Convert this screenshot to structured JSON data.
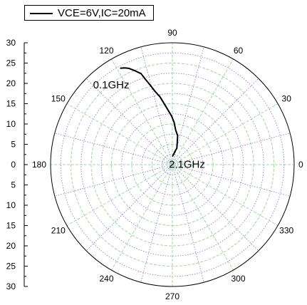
{
  "legend": {
    "label": "VCE=6V,IC=20mA"
  },
  "chart_data": {
    "type": "polar",
    "angle_ticks": [
      "0",
      "30",
      "60",
      "90",
      "120",
      "150",
      "180",
      "210",
      "240",
      "270",
      "300",
      "330"
    ],
    "radial_ticks_left": [
      "30",
      "25",
      "20",
      "15",
      "10",
      "5",
      "0",
      "5",
      "10",
      "15",
      "20",
      "25",
      "30"
    ],
    "radial_range": [
      0,
      30
    ],
    "radial_grid_step": 2.5,
    "angular_grid_step_deg": 15,
    "grid": true,
    "legend_position": "top-left",
    "colors": {
      "trace": "#000000",
      "major_grid": "#a0d8a0",
      "minor_grid": "#7a7acc",
      "axis": "#000000"
    },
    "annotations": [
      {
        "text": "0.1GHz",
        "at_point": 0
      },
      {
        "text": "2.1GHz",
        "at_point": -1
      }
    ],
    "series": [
      {
        "name": "VCE=6V,IC=20mA",
        "points": [
          {
            "angle": 118.5,
            "r": 27.0
          },
          {
            "angle": 116.4,
            "r": 26.6
          },
          {
            "angle": 114.3,
            "r": 26.0
          },
          {
            "angle": 112.0,
            "r": 25.0
          },
          {
            "angle": 109.0,
            "r": 23.7
          },
          {
            "angle": 107.7,
            "r": 22.2
          },
          {
            "angle": 105.8,
            "r": 20.5
          },
          {
            "angle": 103.4,
            "r": 18.6
          },
          {
            "angle": 100.4,
            "r": 17.0
          },
          {
            "angle": 96.9,
            "r": 14.7
          },
          {
            "angle": 91.0,
            "r": 12.0
          },
          {
            "angle": 87.8,
            "r": 10.5
          },
          {
            "angle": 84.4,
            "r": 8.5
          },
          {
            "angle": 79.7,
            "r": 7.3
          },
          {
            "angle": 77.5,
            "r": 5.5
          },
          {
            "angle": 74.7,
            "r": 4.2
          },
          {
            "angle": 78.4,
            "r": 3.4
          },
          {
            "angle": 82.9,
            "r": 2.6
          },
          {
            "angle": 90.0,
            "r": 2.0
          }
        ]
      }
    ]
  }
}
